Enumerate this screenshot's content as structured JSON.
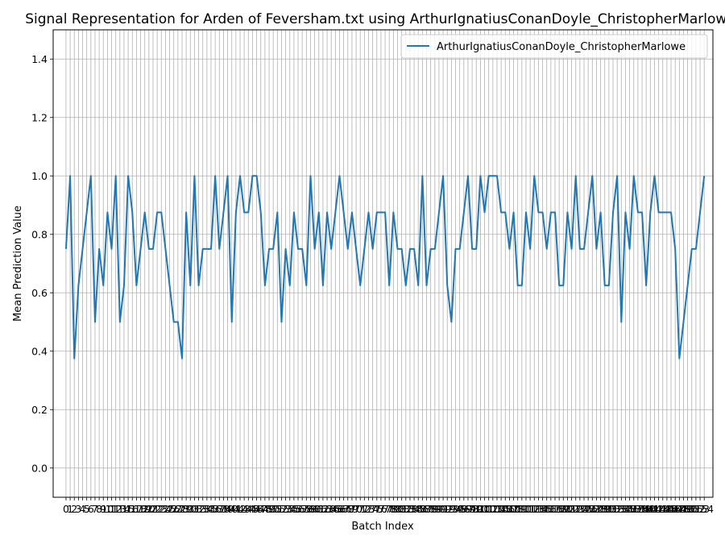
{
  "chart_data": {
    "type": "line",
    "title": "Signal Representation for Arden of Feversham.txt using ArthurIgnatiusConanDoyle_ChristopherMarlowe",
    "xlabel": "Batch Index",
    "ylabel": "Mean Prediction Value",
    "xlim": [
      -3.1,
      156.1
    ],
    "ylim": [
      -0.1,
      1.5
    ],
    "yticks": [
      0.0,
      0.2,
      0.4,
      0.6,
      0.8,
      1.0,
      1.2,
      1.4
    ],
    "ytick_labels": [
      "0.0",
      "0.2",
      "0.4",
      "0.6",
      "0.8",
      "1.0",
      "1.2",
      "1.4"
    ],
    "grid": true,
    "legend_position": "upper right",
    "color": "#1f77b4",
    "series": [
      {
        "name": "ArthurIgnatiusConanDoyle_ChristopherMarlowe",
        "values": [
          0.75,
          1.0,
          0.375,
          0.625,
          0.75,
          0.875,
          1.0,
          0.5,
          0.75,
          0.625,
          0.875,
          0.75,
          1.0,
          0.5,
          0.625,
          1.0,
          0.875,
          0.625,
          0.75,
          0.875,
          0.75,
          0.75,
          0.875,
          0.875,
          0.75,
          0.625,
          0.5,
          0.5,
          0.375,
          0.875,
          0.625,
          1.0,
          0.625,
          0.75,
          0.75,
          0.75,
          1.0,
          0.75,
          0.875,
          1.0,
          0.5,
          0.875,
          1.0,
          0.875,
          0.875,
          1.0,
          1.0,
          0.875,
          0.625,
          0.75,
          0.75,
          0.875,
          0.5,
          0.75,
          0.625,
          0.875,
          0.75,
          0.75,
          0.625,
          1.0,
          0.75,
          0.875,
          0.625,
          0.875,
          0.75,
          0.875,
          1.0,
          0.875,
          0.75,
          0.875,
          0.75,
          0.625,
          0.75,
          0.875,
          0.75,
          0.875,
          0.875,
          0.875,
          0.625,
          0.875,
          0.75,
          0.75,
          0.625,
          0.75,
          0.75,
          0.625,
          1.0,
          0.625,
          0.75,
          0.75,
          0.875,
          1.0,
          0.625,
          0.5,
          0.75,
          0.75,
          0.875,
          1.0,
          0.75,
          0.75,
          1.0,
          0.875,
          1.0,
          1.0,
          1.0,
          0.875,
          0.875,
          0.75,
          0.875,
          0.625,
          0.625,
          0.875,
          0.75,
          1.0,
          0.875,
          0.875,
          0.75,
          0.875,
          0.875,
          0.625,
          0.625,
          0.875,
          0.75,
          1.0,
          0.75,
          0.75,
          0.875,
          1.0,
          0.75,
          0.875,
          0.625,
          0.625,
          0.875,
          1.0,
          0.5,
          0.875,
          0.75,
          1.0,
          0.875,
          0.875,
          0.625,
          0.875,
          1.0,
          0.875,
          0.875,
          0.875,
          0.875,
          0.75,
          0.375,
          0.5,
          0.625,
          0.75,
          0.75,
          0.875,
          1.0
        ]
      }
    ]
  }
}
